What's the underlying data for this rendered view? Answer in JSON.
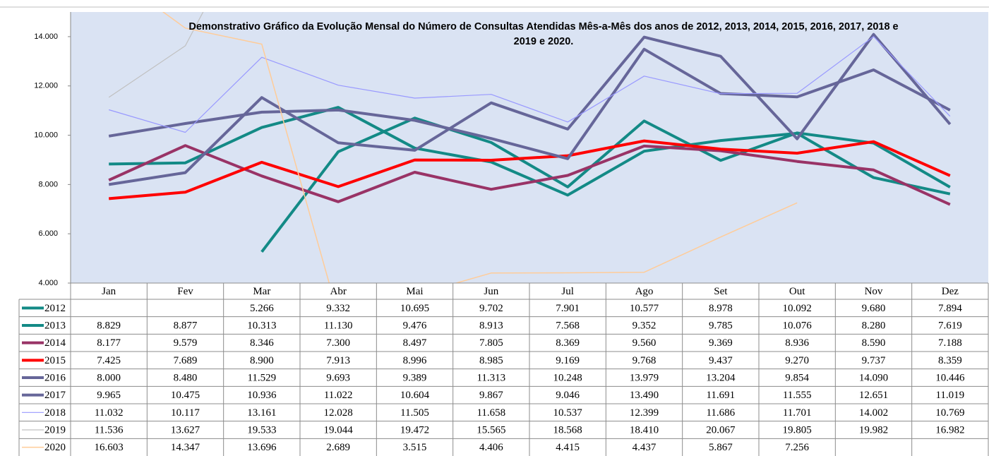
{
  "chart_data": {
    "type": "line",
    "title": [
      "Demonstrativo Gráfico da Evolução Mensal do Número de Consultas Atendidas Mês-a-Mês dos anos de  2012, 2013, 2014, 2015, 2016, 2017, 2018 e",
      "2019 e 2020."
    ],
    "categories": [
      "Jan",
      "Fev",
      "Mar",
      "Abr",
      "Mai",
      "Jun",
      "Jul",
      "Ago",
      "Set",
      "Out",
      "Nov",
      "Dez"
    ],
    "ylim": [
      4000,
      15000
    ],
    "yticks": [
      {
        "value": 4000,
        "label": "4.000"
      },
      {
        "value": 6000,
        "label": "6.000"
      },
      {
        "value": 8000,
        "label": "8.000"
      },
      {
        "value": 10000,
        "label": "10.000"
      },
      {
        "value": 12000,
        "label": "12.000"
      },
      {
        "value": 14000,
        "label": "14.000"
      }
    ],
    "series": [
      {
        "name": "2012",
        "color": "#138a86",
        "width": 4,
        "values": [
          null,
          null,
          5266,
          9332,
          10695,
          9702,
          7901,
          10577,
          8978,
          10092,
          9680,
          7894
        ],
        "value_labels": [
          null,
          null,
          "5.266",
          "9.332",
          "10.695",
          "9.702",
          "7.901",
          "10.577",
          "8.978",
          "10.092",
          "9.680",
          "7.894"
        ]
      },
      {
        "name": "2013",
        "color": "#138a86",
        "width": 4,
        "values": [
          8829,
          8877,
          10313,
          11130,
          9476,
          8913,
          7568,
          9352,
          9785,
          10076,
          8280,
          7619
        ],
        "value_labels": [
          "8.829",
          "8.877",
          "10.313",
          "11.130",
          "9.476",
          "8.913",
          "7.568",
          "9.352",
          "9.785",
          "10.076",
          "8.280",
          "7.619"
        ]
      },
      {
        "name": "2014",
        "color": "#993366",
        "width": 4,
        "values": [
          8177,
          9579,
          8346,
          7300,
          8497,
          7805,
          8369,
          9560,
          9369,
          8936,
          8590,
          7188
        ],
        "value_labels": [
          "8.177",
          "9.579",
          "8.346",
          "7.300",
          "8.497",
          "7.805",
          "8.369",
          "9.560",
          "9.369",
          "8.936",
          "8.590",
          "7.188"
        ]
      },
      {
        "name": "2015",
        "color": "#ff0000",
        "width": 4,
        "values": [
          7425,
          7689,
          8900,
          7913,
          8996,
          8985,
          9169,
          9768,
          9437,
          9270,
          9737,
          8359
        ],
        "value_labels": [
          "7.425",
          "7.689",
          "8.900",
          "7.913",
          "8.996",
          "8.985",
          "9.169",
          "9.768",
          "9.437",
          "9.270",
          "9.737",
          "8.359"
        ]
      },
      {
        "name": "2016",
        "color": "#666699",
        "width": 4,
        "values": [
          8000,
          8480,
          11529,
          9693,
          9389,
          11313,
          10248,
          13979,
          13204,
          9854,
          14090,
          10446
        ],
        "value_labels": [
          "8.000",
          "8.480",
          "11.529",
          "9.693",
          "9.389",
          "11.313",
          "10.248",
          "13.979",
          "13.204",
          "9.854",
          "14.090",
          "10.446"
        ]
      },
      {
        "name": "2017",
        "color": "#666699",
        "width": 4,
        "values": [
          9965,
          10475,
          10936,
          11022,
          10604,
          9867,
          9046,
          13490,
          11691,
          11555,
          12651,
          11019
        ],
        "value_labels": [
          "9.965",
          "10.475",
          "10.936",
          "11.022",
          "10.604",
          "9.867",
          "9.046",
          "13.490",
          "11.691",
          "11.555",
          "12.651",
          "11.019"
        ]
      },
      {
        "name": "2018",
        "color": "#9999ff",
        "width": 1.2,
        "values": [
          11032,
          10117,
          13161,
          12028,
          11505,
          11658,
          10537,
          12399,
          11686,
          11701,
          14002,
          10769
        ],
        "value_labels": [
          "11.032",
          "10.117",
          "13.161",
          "12.028",
          "11.505",
          "11.658",
          "10.537",
          "12.399",
          "11.686",
          "11.701",
          "14.002",
          "10.769"
        ]
      },
      {
        "name": "2019",
        "color": "#c0c0c0",
        "width": 1.2,
        "values": [
          11536,
          13627,
          19533,
          19044,
          19472,
          15565,
          18568,
          18410,
          20067,
          19805,
          19982,
          16982
        ],
        "value_labels": [
          "11.536",
          "13.627",
          "19.533",
          "19.044",
          "19.472",
          "15.565",
          "18.568",
          "18.410",
          "20.067",
          "19.805",
          "19.982",
          "16.982"
        ]
      },
      {
        "name": "2020",
        "color": "#ffcc99",
        "width": 1.5,
        "values": [
          16603,
          14347,
          13696,
          2689,
          3515,
          4406,
          4415,
          4437,
          5867,
          7256,
          null,
          null
        ],
        "value_labels": [
          "16.603",
          "14.347",
          "13.696",
          "2.689",
          "3.515",
          "4.406",
          "4.415",
          "4.437",
          "5.867",
          "7.256",
          null,
          null
        ]
      }
    ]
  }
}
